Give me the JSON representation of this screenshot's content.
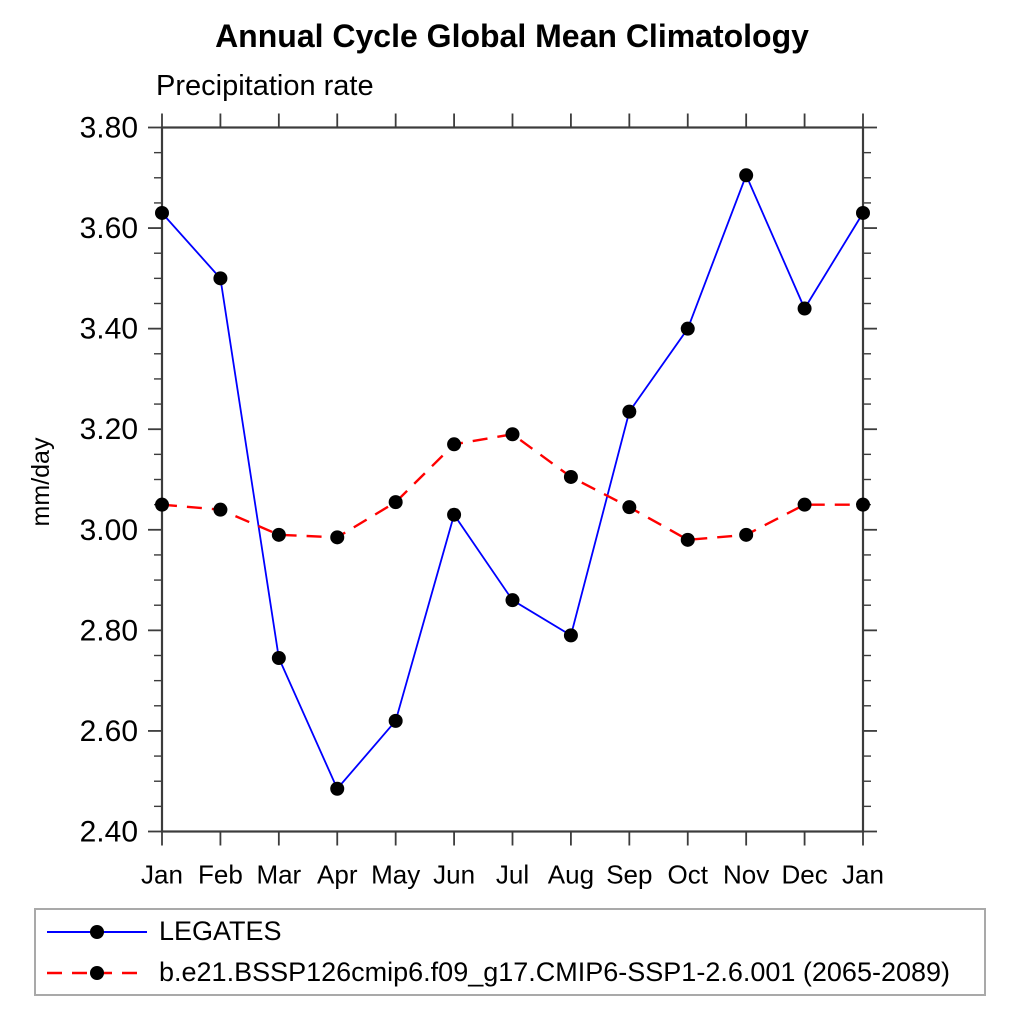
{
  "chart_data": {
    "type": "line",
    "title": "Annual Cycle Global Mean Climatology",
    "subtitle": "Precipitation rate",
    "ylabel": "mm/day",
    "xlabel": "",
    "categories": [
      "Jan",
      "Feb",
      "Mar",
      "Apr",
      "May",
      "Jun",
      "Jul",
      "Aug",
      "Sep",
      "Oct",
      "Nov",
      "Dec",
      "Jan"
    ],
    "ylim": [
      2.4,
      3.8
    ],
    "ytick_step": 0.2,
    "yminor_step": 0.05,
    "yticks": [
      {
        "value": 2.4,
        "label": "2.40"
      },
      {
        "value": 2.6,
        "label": "2.60"
      },
      {
        "value": 2.8,
        "label": "2.80"
      },
      {
        "value": 3.0,
        "label": "3.00"
      },
      {
        "value": 3.2,
        "label": "3.20"
      },
      {
        "value": 3.4,
        "label": "3.40"
      },
      {
        "value": 3.6,
        "label": "3.60"
      },
      {
        "value": 3.8,
        "label": "3.80"
      }
    ],
    "grid": false,
    "legend_position": "bottom-left-box",
    "series": [
      {
        "name": "LEGATES",
        "color": "#0000ff",
        "line_style": "solid",
        "marker": "filled-circle",
        "marker_color": "#000000",
        "values": [
          3.63,
          3.5,
          2.745,
          2.485,
          2.62,
          3.03,
          2.86,
          2.79,
          3.235,
          3.4,
          3.705,
          3.44,
          3.63
        ]
      },
      {
        "name": "b.e21.BSSP126cmip6.f09_g17.CMIP6-SSP1-2.6.001 (2065-2089)",
        "color": "#ff0000",
        "line_style": "dashed",
        "marker": "filled-circle",
        "marker_color": "#000000",
        "values": [
          3.05,
          3.04,
          2.99,
          2.985,
          3.055,
          3.17,
          3.19,
          3.105,
          3.045,
          2.98,
          2.99,
          3.05,
          3.05
        ]
      }
    ]
  }
}
